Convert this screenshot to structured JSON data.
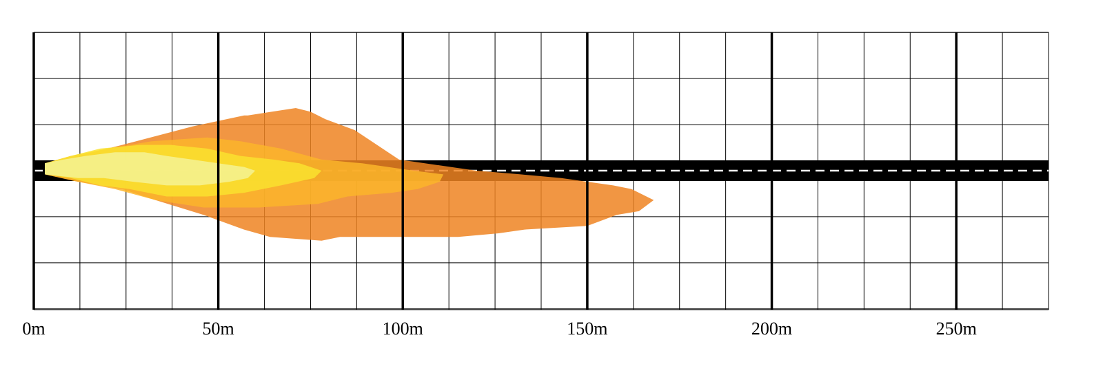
{
  "chart_data": {
    "type": "area",
    "title": "",
    "xlabel": "",
    "ylabel": "",
    "xlim": [
      0,
      275
    ],
    "x_unit": "m",
    "x_ticks": [
      {
        "value": 0,
        "label": "0m"
      },
      {
        "value": 50,
        "label": "50m"
      },
      {
        "value": 100,
        "label": "100m"
      },
      {
        "value": 150,
        "label": "150m"
      },
      {
        "value": 200,
        "label": "200m"
      },
      {
        "value": 250,
        "label": "250m"
      }
    ],
    "grid": true,
    "minor_grid_step": 12.5,
    "road": {
      "color": "#000000",
      "centerline_color": "#ffffff",
      "centerline": "dashed"
    },
    "series": [
      {
        "color": "#ee8422",
        "polygon": [
          [
            3,
            2
          ],
          [
            12,
            4
          ],
          [
            24,
            7
          ],
          [
            43,
            12
          ],
          [
            57,
            15
          ],
          [
            58,
            15
          ],
          [
            71,
            17
          ],
          [
            75,
            16
          ],
          [
            79,
            14
          ],
          [
            87,
            11
          ],
          [
            93,
            7
          ],
          [
            99,
            3
          ],
          [
            106,
            2
          ],
          [
            113,
            1
          ],
          [
            120,
            0
          ],
          [
            132,
            -1
          ],
          [
            143,
            -2
          ],
          [
            157,
            -4
          ],
          [
            162,
            -5
          ],
          [
            168,
            -8
          ],
          [
            164,
            -11
          ],
          [
            158,
            -12
          ],
          [
            150,
            -15
          ],
          [
            133,
            -16
          ],
          [
            126,
            -17
          ],
          [
            115,
            -18
          ],
          [
            100,
            -18
          ],
          [
            83,
            -18
          ],
          [
            78,
            -19
          ],
          [
            64,
            -18
          ],
          [
            57,
            -16
          ],
          [
            46,
            -12
          ],
          [
            33,
            -8
          ],
          [
            24,
            -5
          ],
          [
            12,
            -3
          ],
          [
            3,
            -1
          ]
        ]
      },
      {
        "color": "#fbb52a",
        "polygon": [
          [
            3,
            2
          ],
          [
            10,
            4
          ],
          [
            20,
            6
          ],
          [
            32,
            8
          ],
          [
            47,
            9
          ],
          [
            56,
            8
          ],
          [
            67,
            6
          ],
          [
            78,
            3
          ],
          [
            89,
            2
          ],
          [
            103,
            0
          ],
          [
            111,
            -1
          ],
          [
            110,
            -3
          ],
          [
            104,
            -5
          ],
          [
            97,
            -6
          ],
          [
            85,
            -7
          ],
          [
            77,
            -9
          ],
          [
            61,
            -10
          ],
          [
            46,
            -10
          ],
          [
            33,
            -8
          ],
          [
            22,
            -5
          ],
          [
            12,
            -3
          ],
          [
            3,
            -1
          ]
        ]
      },
      {
        "color": "#f9e22e",
        "polygon": [
          [
            3,
            2
          ],
          [
            10,
            4
          ],
          [
            18,
            6
          ],
          [
            29,
            7
          ],
          [
            37,
            7
          ],
          [
            47,
            6
          ],
          [
            56,
            4
          ],
          [
            65,
            3
          ],
          [
            72,
            2
          ],
          [
            78,
            0
          ],
          [
            76,
            -2
          ],
          [
            67,
            -4
          ],
          [
            57,
            -6
          ],
          [
            47,
            -7
          ],
          [
            36,
            -7
          ],
          [
            26,
            -5
          ],
          [
            18,
            -4
          ],
          [
            10,
            -2
          ],
          [
            3,
            -1
          ]
        ]
      },
      {
        "color": "#f5f294",
        "polygon": [
          [
            3,
            2
          ],
          [
            8,
            3
          ],
          [
            14,
            4
          ],
          [
            22,
            5
          ],
          [
            30,
            5
          ],
          [
            36,
            4
          ],
          [
            43,
            3
          ],
          [
            50,
            2
          ],
          [
            57,
            1
          ],
          [
            60,
            0
          ],
          [
            58,
            -2
          ],
          [
            53,
            -3
          ],
          [
            45,
            -4
          ],
          [
            36,
            -4
          ],
          [
            27,
            -3
          ],
          [
            19,
            -2
          ],
          [
            12,
            -2
          ],
          [
            3,
            -1
          ]
        ]
      }
    ]
  }
}
